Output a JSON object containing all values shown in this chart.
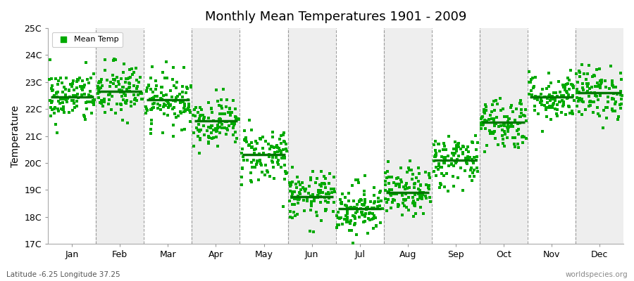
{
  "title": "Monthly Mean Temperatures 1901 - 2009",
  "ylabel": "Temperature",
  "footer_left": "Latitude -6.25 Longitude 37.25",
  "footer_right": "worldspecies.org",
  "legend_label": "Mean Temp",
  "marker_color": "#00aa00",
  "mean_line_color": "#007700",
  "bg_color": "#ffffff",
  "band_odd_color": "#ffffff",
  "band_even_color": "#eeeeee",
  "dashed_line_color": "#777777",
  "ylim": [
    17,
    25
  ],
  "ytick_labels": [
    "17C",
    "18C",
    "19C",
    "20C",
    "21C",
    "22C",
    "23C",
    "24C",
    "25C"
  ],
  "ytick_values": [
    17,
    18,
    19,
    20,
    21,
    22,
    23,
    24,
    25
  ],
  "months": [
    "Jan",
    "Feb",
    "Mar",
    "Apr",
    "May",
    "Jun",
    "Jul",
    "Aug",
    "Sep",
    "Oct",
    "Nov",
    "Dec"
  ],
  "monthly_means": [
    22.45,
    22.65,
    22.35,
    21.55,
    20.3,
    18.75,
    18.3,
    18.9,
    20.1,
    21.5,
    22.45,
    22.6
  ],
  "monthly_stds": [
    0.5,
    0.55,
    0.5,
    0.45,
    0.55,
    0.45,
    0.5,
    0.45,
    0.5,
    0.5,
    0.45,
    0.5
  ],
  "n_years": 109,
  "seed": 42,
  "figsize": [
    9.0,
    4.0
  ],
  "dpi": 100
}
